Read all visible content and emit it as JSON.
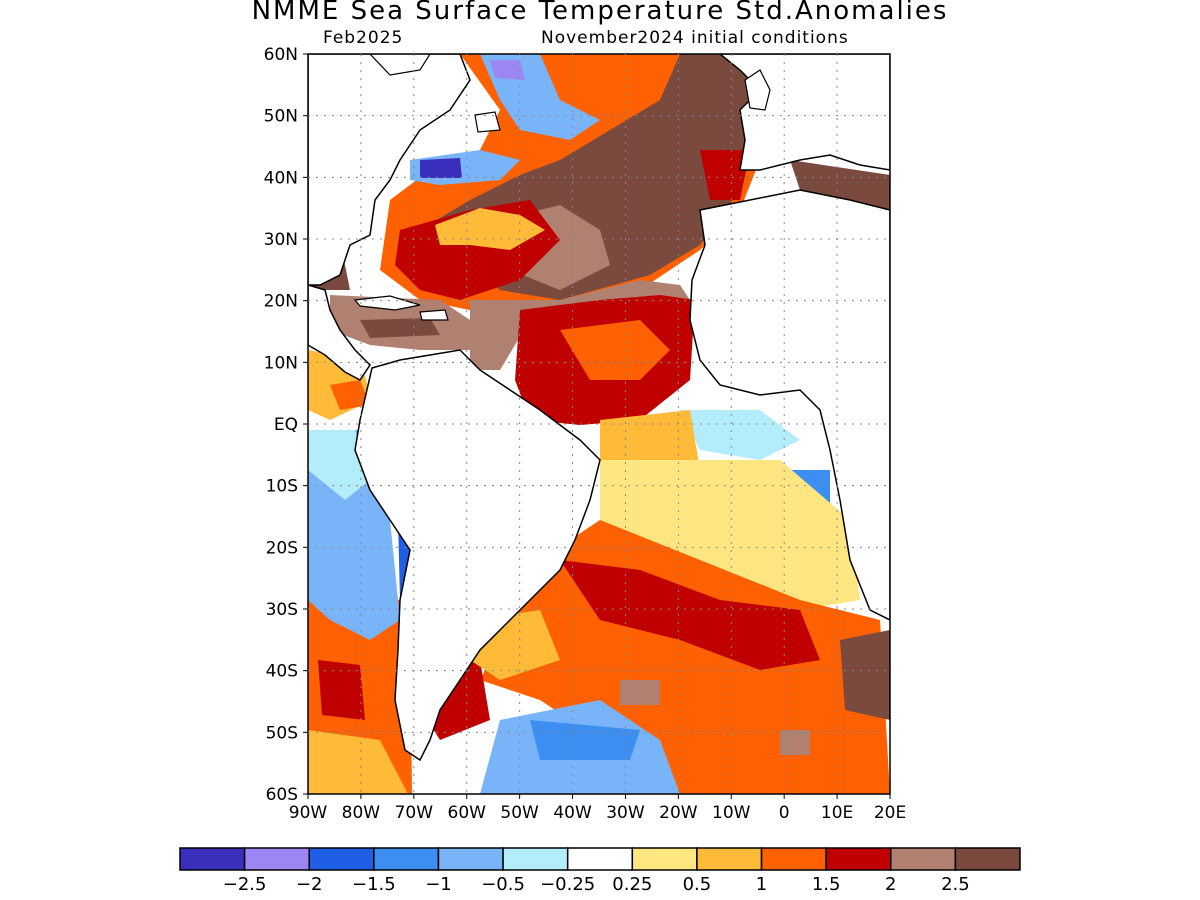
{
  "title": "NMME Sea Surface Temperature Std.Anomalies",
  "subtitle_left": "Feb2025",
  "subtitle_right": "November2024 initial conditions",
  "map": {
    "lon_range": [
      -90,
      20
    ],
    "lat_range": [
      -60,
      60
    ],
    "lon_ticks": [
      {
        "value": -90,
        "label": "90W"
      },
      {
        "value": -80,
        "label": "80W"
      },
      {
        "value": -70,
        "label": "70W"
      },
      {
        "value": -60,
        "label": "60W"
      },
      {
        "value": -50,
        "label": "50W"
      },
      {
        "value": -40,
        "label": "40W"
      },
      {
        "value": -30,
        "label": "30W"
      },
      {
        "value": -20,
        "label": "20W"
      },
      {
        "value": -10,
        "label": "10W"
      },
      {
        "value": 0,
        "label": "0"
      },
      {
        "value": 10,
        "label": "10E"
      },
      {
        "value": 20,
        "label": "20E"
      }
    ],
    "lat_ticks": [
      {
        "value": 60,
        "label": "60N"
      },
      {
        "value": 50,
        "label": "50N"
      },
      {
        "value": 40,
        "label": "40N"
      },
      {
        "value": 30,
        "label": "30N"
      },
      {
        "value": 20,
        "label": "20N"
      },
      {
        "value": 10,
        "label": "10N"
      },
      {
        "value": 0,
        "label": "EQ"
      },
      {
        "value": -10,
        "label": "10S"
      },
      {
        "value": -20,
        "label": "20S"
      },
      {
        "value": -30,
        "label": "30S"
      },
      {
        "value": -40,
        "label": "40S"
      },
      {
        "value": -50,
        "label": "50S"
      },
      {
        "value": -60,
        "label": "60S"
      }
    ],
    "gridlines": "dotted"
  },
  "colorbar": {
    "colors": [
      "#3a2fbd",
      "#9b86f3",
      "#1f5fe6",
      "#3c8ff0",
      "#78b4f7",
      "#b3ecfa",
      "#ffffff",
      "#ffe680",
      "#ffbb38",
      "#ff6000",
      "#c00000",
      "#b08070",
      "#7a4a3f"
    ],
    "labels": [
      "−2.5",
      "−2",
      "−1.5",
      "−1",
      "−0.5",
      "−0.25",
      "0.25",
      "0.5",
      "1",
      "1.5",
      "2",
      "2.5"
    ]
  }
}
